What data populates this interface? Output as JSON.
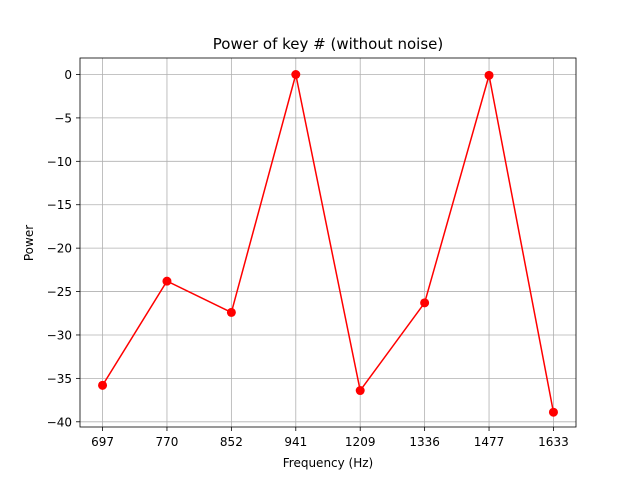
{
  "chart_data": {
    "type": "line",
    "title": "Power of key # (without noise)",
    "xlabel": "Frequency (Hz)",
    "ylabel": "Power",
    "categories": [
      "697",
      "770",
      "852",
      "941",
      "1209",
      "1336",
      "1477",
      "1633"
    ],
    "series": [
      {
        "values": [
          -35.8,
          -23.8,
          -27.4,
          0.0,
          -36.4,
          -26.3,
          -0.1,
          -38.9
        ],
        "color": "#ff0000",
        "marker": "circle"
      }
    ],
    "ylim": [
      -40.6,
      1.9
    ],
    "yticks": [
      0,
      -5,
      -10,
      -15,
      -20,
      -25,
      -30,
      -35,
      -40
    ],
    "grid": true
  }
}
